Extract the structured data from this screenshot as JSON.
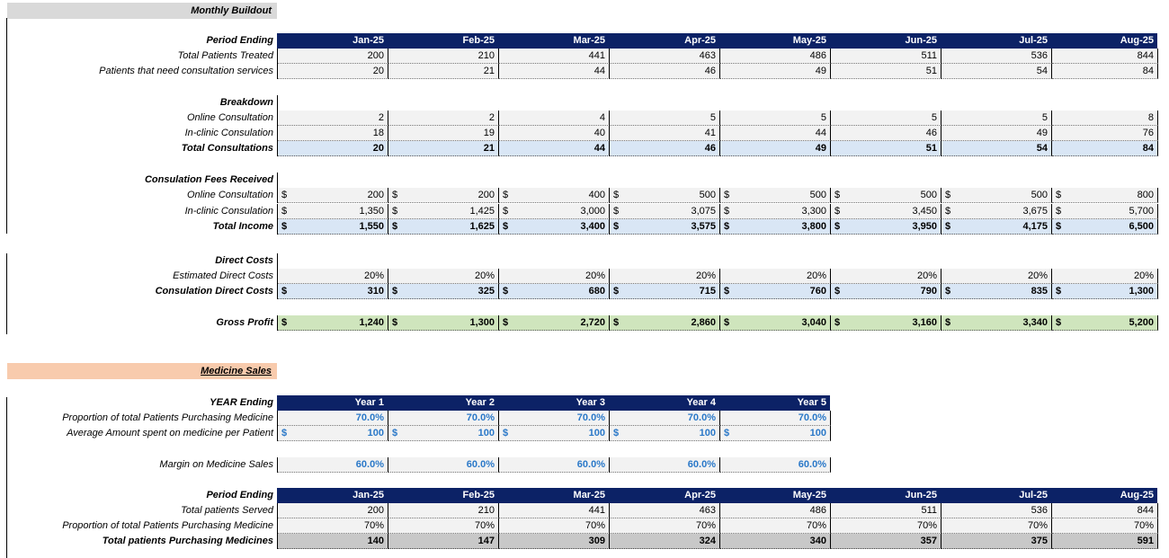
{
  "monthly_buildout_title": "Monthly Buildout",
  "period_ending_label": "Period Ending",
  "months": [
    "Jan-25",
    "Feb-25",
    "Mar-25",
    "Apr-25",
    "May-25",
    "Jun-25",
    "Jul-25",
    "Aug-25"
  ],
  "total_patients_treated": {
    "label": "Total Patients Treated",
    "values": [
      "200",
      "210",
      "441",
      "463",
      "486",
      "511",
      "536",
      "844"
    ]
  },
  "patients_need_consultation": {
    "label": "Patients that need consultation services",
    "values": [
      "20",
      "21",
      "44",
      "46",
      "49",
      "51",
      "54",
      "84"
    ]
  },
  "breakdown_label": "Breakdown",
  "online_consultation": {
    "label": "Online Consultation",
    "values": [
      "2",
      "2",
      "4",
      "5",
      "5",
      "5",
      "5",
      "8"
    ]
  },
  "inclinic_consultation": {
    "label": "In-clinic Consulation",
    "values": [
      "18",
      "19",
      "40",
      "41",
      "44",
      "46",
      "49",
      "76"
    ]
  },
  "total_consultations": {
    "label": "Total Consultations",
    "values": [
      "20",
      "21",
      "44",
      "46",
      "49",
      "51",
      "54",
      "84"
    ]
  },
  "fees_received_label": "Consulation Fees Received",
  "fees_online": {
    "label": "Online Consultation",
    "values": [
      "200",
      "200",
      "400",
      "500",
      "500",
      "500",
      "500",
      "800"
    ]
  },
  "fees_inclinic": {
    "label": "In-clinic Consulation",
    "values": [
      "1,350",
      "1,425",
      "3,000",
      "3,075",
      "3,300",
      "3,450",
      "3,675",
      "5,700"
    ]
  },
  "total_income": {
    "label": "Total Income",
    "values": [
      "1,550",
      "1,625",
      "3,400",
      "3,575",
      "3,800",
      "3,950",
      "4,175",
      "6,500"
    ]
  },
  "direct_costs_label": "Direct Costs",
  "estimated_direct_costs": {
    "label": "Estimated  Direct Costs",
    "values": [
      "20%",
      "20%",
      "20%",
      "20%",
      "20%",
      "20%",
      "20%",
      "20%"
    ]
  },
  "consultation_direct_costs": {
    "label": "Consulation Direct Costs",
    "values": [
      "310",
      "325",
      "680",
      "715",
      "760",
      "790",
      "835",
      "1,300"
    ]
  },
  "gross_profit": {
    "label": "Gross Profit",
    "values": [
      "1,240",
      "1,300",
      "2,720",
      "2,860",
      "3,040",
      "3,160",
      "3,340",
      "5,200"
    ]
  },
  "medicine_sales_title": "Medicine Sales",
  "year_ending_label": "YEAR Ending",
  "years": [
    "Year 1",
    "Year 2",
    "Year 3",
    "Year 4",
    "Year 5"
  ],
  "proportion_purchasing": {
    "label": "Proportion of total Patients Purchasing Medicine",
    "values": [
      "70.0%",
      "70.0%",
      "70.0%",
      "70.0%",
      "70.0%"
    ]
  },
  "avg_amount_spent": {
    "label": "Average Amount spent on medicine per Patient",
    "values": [
      "100",
      "100",
      "100",
      "100",
      "100"
    ]
  },
  "margin_medicine": {
    "label": "Margin on Medicine Sales",
    "values": [
      "60.0%",
      "60.0%",
      "60.0%",
      "60.0%",
      "60.0%"
    ]
  },
  "period_ending_label2": "Period Ending",
  "total_patients_served": {
    "label": "Total patients Served",
    "values": [
      "200",
      "210",
      "441",
      "463",
      "486",
      "511",
      "536",
      "844"
    ]
  },
  "proportion_purchasing_monthly": {
    "label": "Proportion of total Patients Purchasing Medicine",
    "values": [
      "70%",
      "70%",
      "70%",
      "70%",
      "70%",
      "70%",
      "70%",
      "70%"
    ]
  },
  "total_purchasing": {
    "label": "Total patients Purchasing Medicines",
    "values": [
      "140",
      "147",
      "309",
      "324",
      "340",
      "357",
      "375",
      "591"
    ]
  }
}
